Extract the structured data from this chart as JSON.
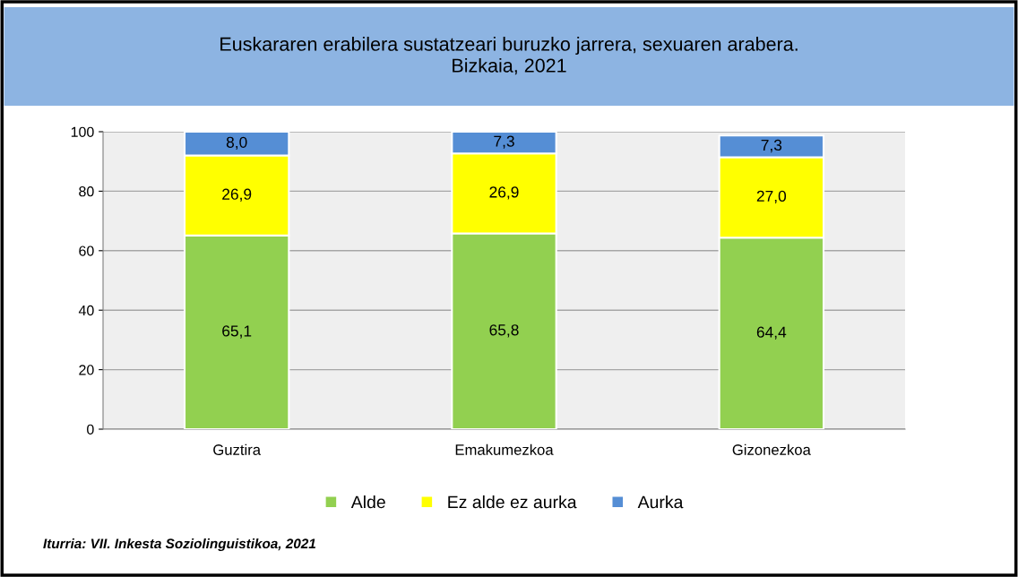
{
  "chart_data": {
    "type": "bar",
    "title": "Euskararen erabilera sustatzeari buruzko jarrera, sexuaren arabera.\nBizkaia, 2021",
    "categories": [
      "Guztira",
      "Emakumezkoa",
      "Gizonezkoa"
    ],
    "series": [
      {
        "name": "Alde",
        "color": "#92d050",
        "values": [
          65.1,
          65.8,
          64.4
        ],
        "value_labels": [
          "65,1",
          "65,8",
          "64,4"
        ]
      },
      {
        "name": "Ez alde ez aurka",
        "color": "#ffff00",
        "values": [
          26.9,
          26.9,
          27.0
        ],
        "value_labels": [
          "26,9",
          "26,9",
          "27,0"
        ]
      },
      {
        "name": "Aurka",
        "color": "#558ed5",
        "values": [
          8.0,
          7.3,
          7.3
        ],
        "value_labels": [
          "8,0",
          "7,3",
          "7,3"
        ]
      }
    ],
    "stacked": true,
    "ylim": [
      0,
      100
    ],
    "yticks": [
      0,
      20,
      40,
      60,
      80,
      100
    ],
    "grid": "y",
    "legend": "bottom",
    "annotations": [
      "Iturria: VII. Inkesta Soziolinguistikoa, 2021"
    ]
  }
}
